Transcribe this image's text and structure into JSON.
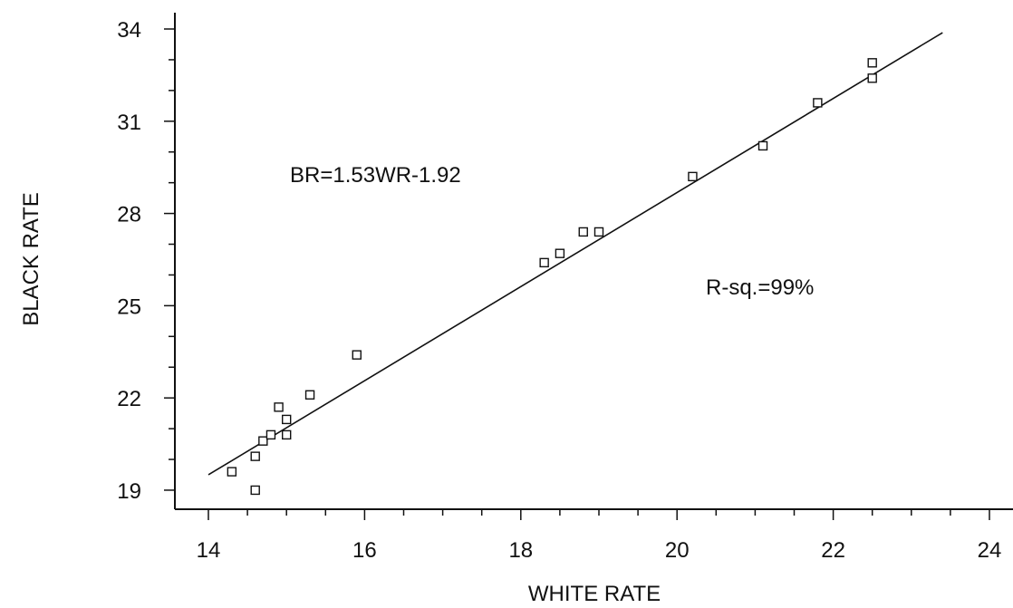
{
  "chart_data": {
    "type": "scatter",
    "title": "",
    "xlabel": "WHITE RATE",
    "ylabel": "BLACK RATE",
    "xlim": [
      14,
      24
    ],
    "ylim": [
      19,
      34
    ],
    "x_ticks": [
      14,
      16,
      18,
      20,
      22,
      24
    ],
    "y_ticks": [
      19,
      22,
      25,
      28,
      31,
      34
    ],
    "grid": false,
    "legend": "none",
    "points": [
      {
        "x": 14.3,
        "y": 19.6
      },
      {
        "x": 14.6,
        "y": 19.0
      },
      {
        "x": 14.6,
        "y": 20.1
      },
      {
        "x": 14.7,
        "y": 20.6
      },
      {
        "x": 14.8,
        "y": 20.8
      },
      {
        "x": 14.9,
        "y": 21.7
      },
      {
        "x": 15.0,
        "y": 21.3
      },
      {
        "x": 15.0,
        "y": 20.8
      },
      {
        "x": 15.3,
        "y": 22.1
      },
      {
        "x": 15.9,
        "y": 23.4
      },
      {
        "x": 18.3,
        "y": 26.4
      },
      {
        "x": 18.5,
        "y": 26.7
      },
      {
        "x": 18.8,
        "y": 27.4
      },
      {
        "x": 19.0,
        "y": 27.4
      },
      {
        "x": 20.2,
        "y": 29.2
      },
      {
        "x": 21.1,
        "y": 30.2
      },
      {
        "x": 21.8,
        "y": 31.6
      },
      {
        "x": 22.5,
        "y": 32.4
      },
      {
        "x": 22.5,
        "y": 32.9
      }
    ],
    "fit_line": {
      "slope": 1.53,
      "intercept": -1.92,
      "x_range": [
        14.0,
        23.4
      ]
    },
    "annotations": [
      {
        "text": "BR=1.53WR-1.92"
      },
      {
        "text": "R-sq.=99%"
      }
    ]
  }
}
